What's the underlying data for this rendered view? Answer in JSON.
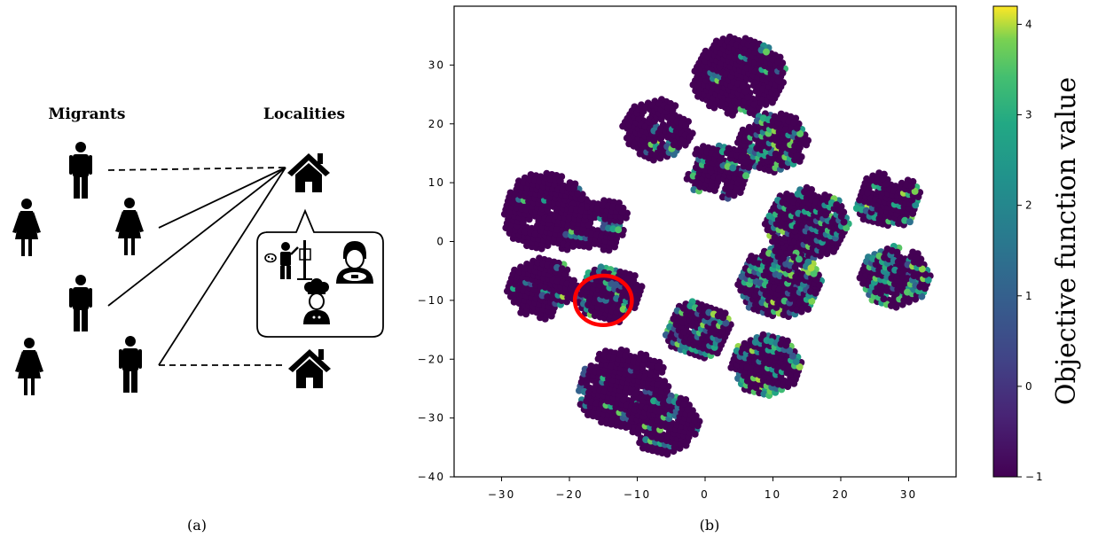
{
  "panel_a": {
    "label": "(a)",
    "migrants_title": "Migrants",
    "localities_title": "Localities",
    "icons": [
      "man-icon",
      "woman-icon",
      "house-icon",
      "painter-icon",
      "driver-icon",
      "chef-icon",
      "speech-bubble-icon"
    ]
  },
  "panel_b": {
    "label": "(b)",
    "chart_data": {
      "type": "scatter",
      "title": "",
      "xlabel": "",
      "ylabel": "",
      "xlim": [
        -37,
        37
      ],
      "ylim": [
        -40,
        40
      ],
      "x_ticks": [
        "−30",
        "−20",
        "−10",
        "0",
        "10",
        "20",
        "30"
      ],
      "x_tick_values": [
        -30,
        -20,
        -10,
        0,
        10,
        20,
        30
      ],
      "y_ticks": [
        "30",
        "20",
        "10",
        "0",
        "−10",
        "−20",
        "−30",
        "−40"
      ],
      "y_tick_values": [
        30,
        20,
        10,
        0,
        -10,
        -20,
        -30,
        -40
      ],
      "grid": false,
      "colormap": "viridis",
      "colorbar": {
        "label": "Objective function value",
        "range": [
          -1,
          4.2
        ],
        "ticks": [
          "4",
          "3",
          "2",
          "1",
          "0",
          "−1"
        ],
        "tick_values": [
          4,
          3,
          2,
          1,
          0,
          -1
        ]
      },
      "annotation": {
        "type": "circle",
        "color": "#ff0000",
        "center": [
          -15,
          -10
        ],
        "radius": 4.2
      },
      "clusters": [
        {
          "center": [
            5,
            28
          ],
          "spread": 9,
          "rotation": 0.35,
          "high_fraction": 0.1
        },
        {
          "center": [
            -7,
            19
          ],
          "spread": 7,
          "rotation": 0.3,
          "high_fraction": 0.12
        },
        {
          "center": [
            10,
            17
          ],
          "spread": 7,
          "rotation": 0.45,
          "high_fraction": 0.35
        },
        {
          "center": [
            2,
            12
          ],
          "spread": 6,
          "rotation": 0.5,
          "high_fraction": 0.25
        },
        {
          "center": [
            -23,
            5
          ],
          "spread": 9,
          "rotation": 0.55,
          "high_fraction": 0.05
        },
        {
          "center": [
            -16,
            3
          ],
          "spread": 6,
          "rotation": 0.6,
          "high_fraction": 0.15
        },
        {
          "center": [
            27,
            7
          ],
          "spread": 6,
          "rotation": 0.5,
          "high_fraction": 0.3
        },
        {
          "center": [
            15,
            3
          ],
          "spread": 8,
          "rotation": 0.35,
          "high_fraction": 0.35
        },
        {
          "center": [
            11,
            -7
          ],
          "spread": 8,
          "rotation": 0.4,
          "high_fraction": 0.55
        },
        {
          "center": [
            28,
            -6
          ],
          "spread": 7,
          "rotation": 0.45,
          "high_fraction": 0.75
        },
        {
          "center": [
            -24,
            -8
          ],
          "spread": 7,
          "rotation": 0.5,
          "high_fraction": 0.1
        },
        {
          "center": [
            -14,
            -9
          ],
          "spread": 6,
          "rotation": 0.5,
          "high_fraction": 0.2
        },
        {
          "center": [
            -1,
            -15
          ],
          "spread": 6,
          "rotation": 0.4,
          "high_fraction": 0.35
        },
        {
          "center": [
            9,
            -21
          ],
          "spread": 7,
          "rotation": 0.5,
          "high_fraction": 0.45
        },
        {
          "center": [
            -12,
            -25
          ],
          "spread": 9,
          "rotation": 0.55,
          "high_fraction": 0.15
        },
        {
          "center": [
            -6,
            -31
          ],
          "spread": 7,
          "rotation": 0.5,
          "high_fraction": 0.25
        }
      ]
    }
  }
}
